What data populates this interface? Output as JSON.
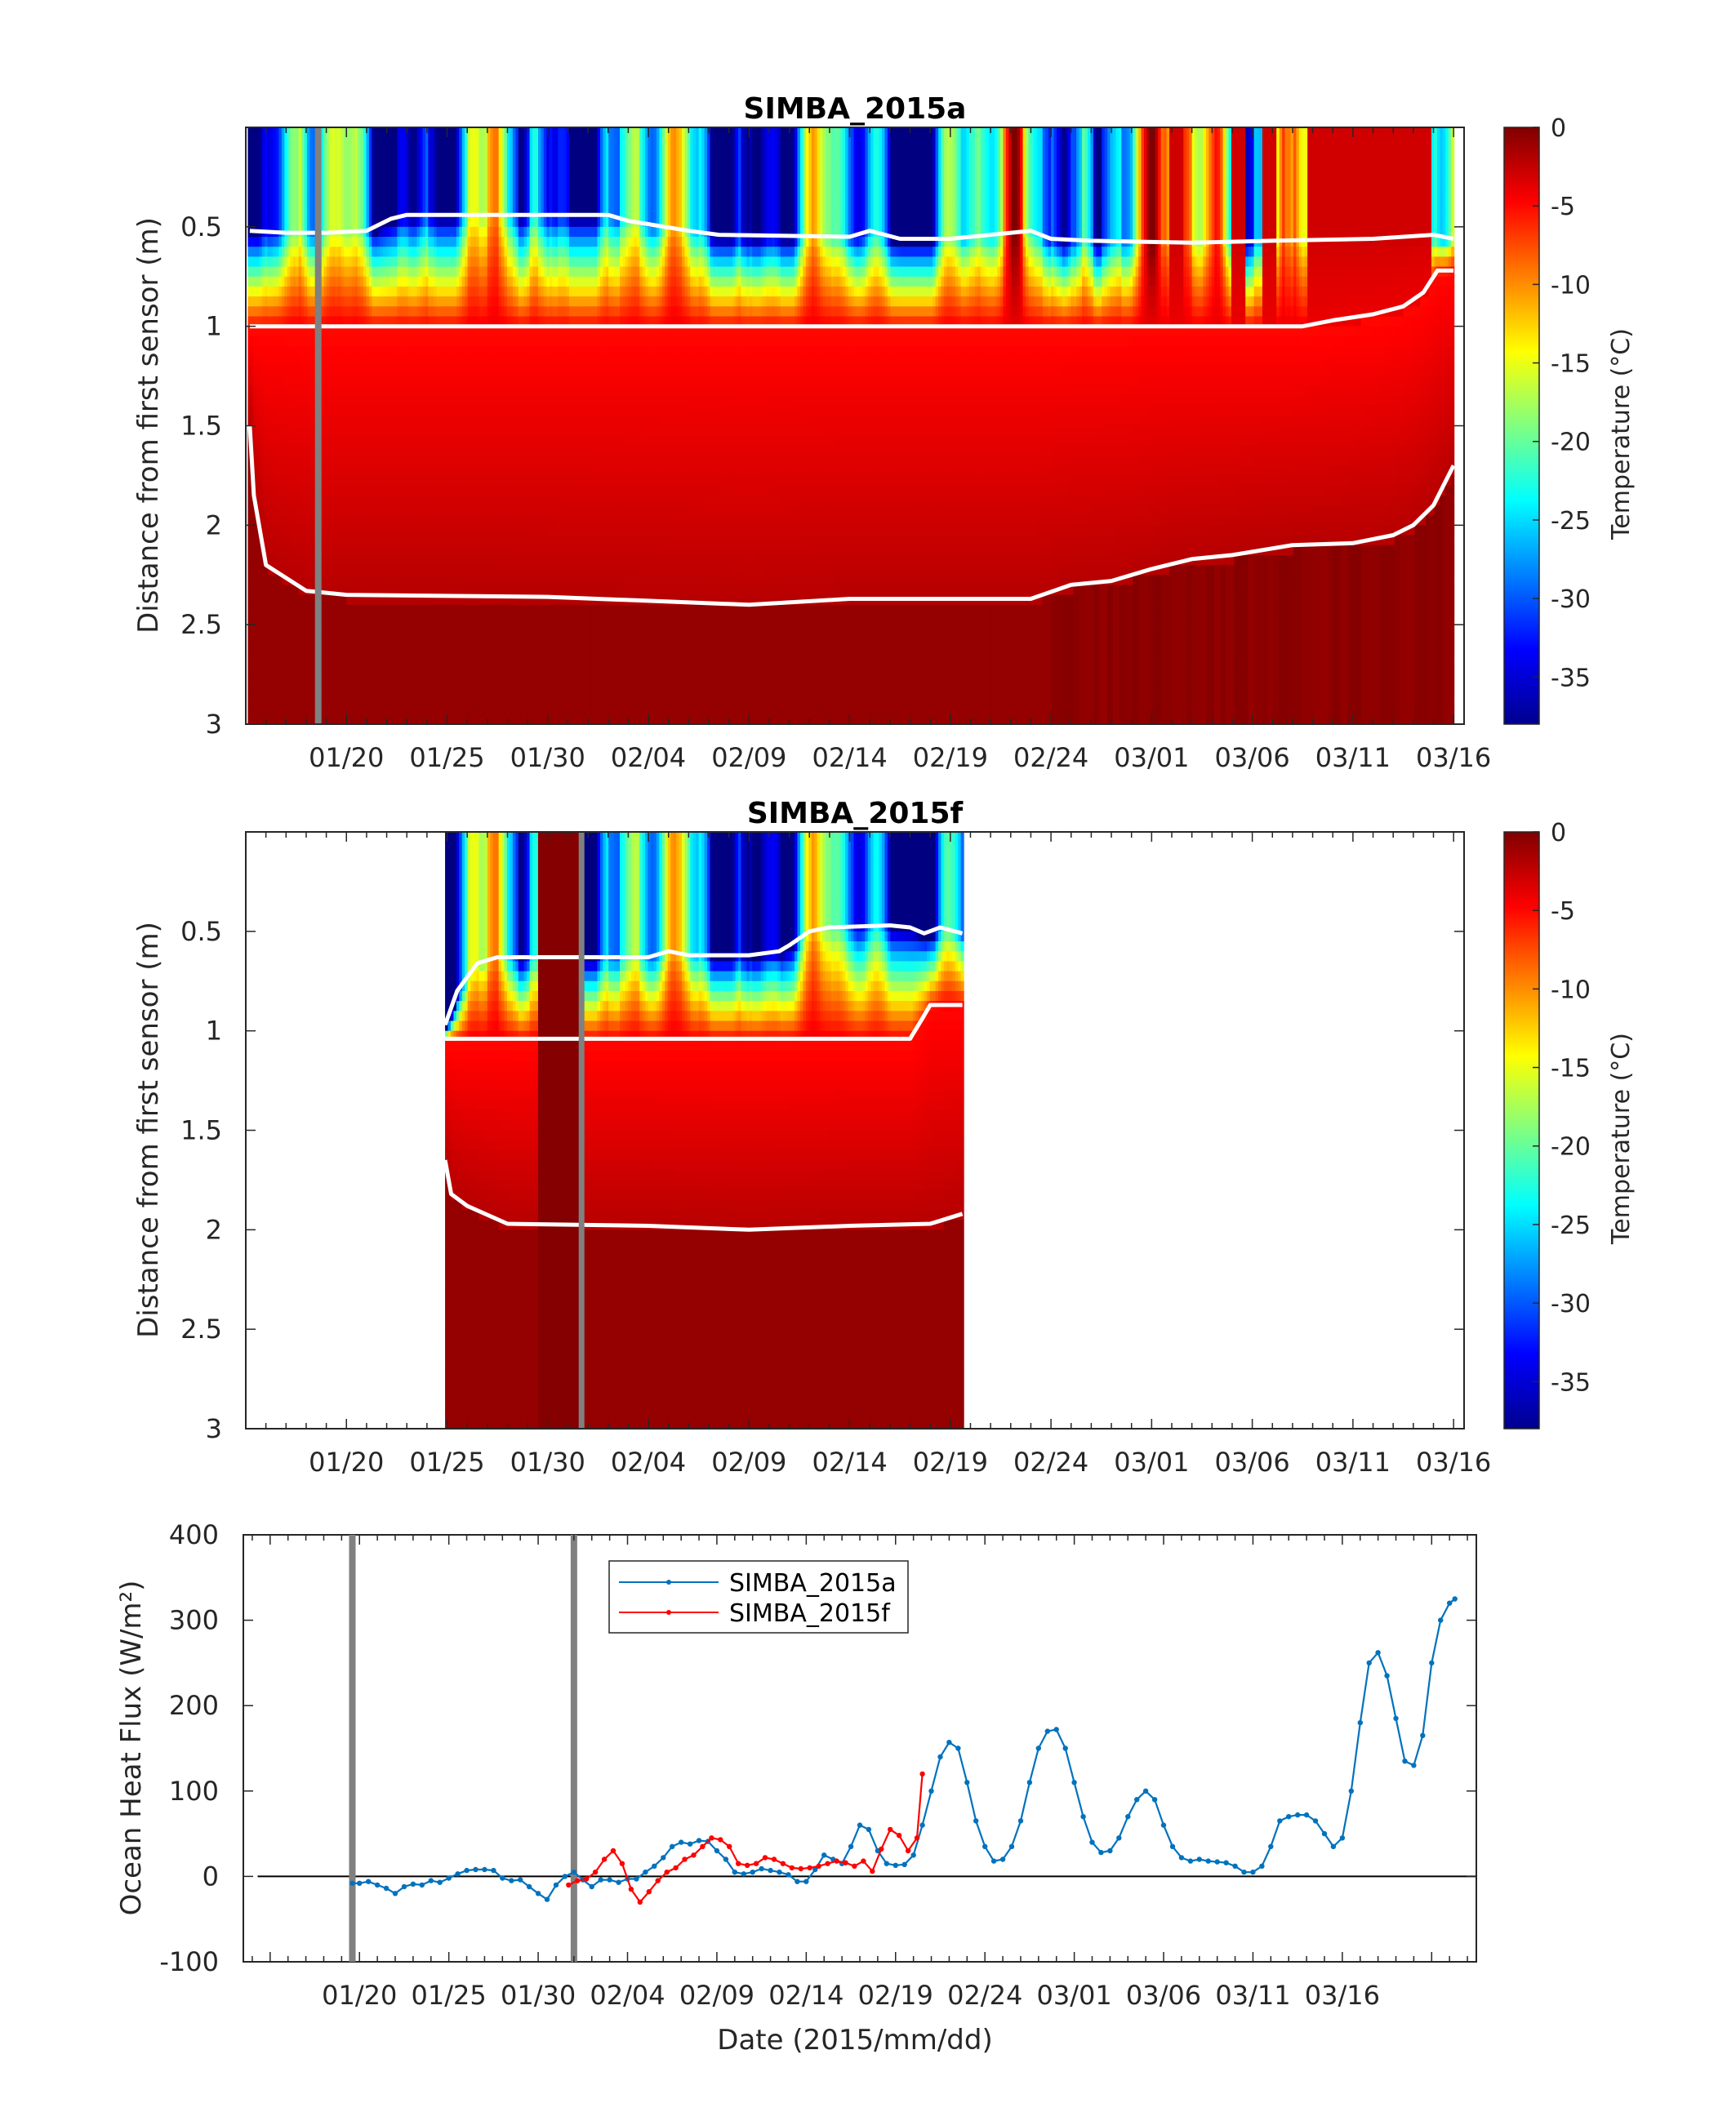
{
  "chart_data": [
    {
      "type": "heatmap",
      "title": "SIMBA_2015a",
      "ylabel": "Distance from first sensor (m)",
      "ylim": [
        3,
        0
      ],
      "yticks": [
        "0.5",
        "1",
        "1.5",
        "2",
        "2.5",
        "3"
      ],
      "xtick_labels": [
        "01/20",
        "01/25",
        "01/30",
        "02/04",
        "02/09",
        "02/14",
        "02/19",
        "02/24",
        "03/01",
        "03/06",
        "03/11",
        "03/16"
      ],
      "colorbar": {
        "label": "Temperature (°C)",
        "range": [
          -38,
          0
        ],
        "ticks": [
          "0",
          "-5",
          "-10",
          "-15",
          "-20",
          "-25",
          "-30",
          "-35"
        ]
      },
      "data_start_day": 15.1,
      "data_end_day": 75.0,
      "marker_day": 18.6,
      "snow_surface": [
        [
          15.2,
          0.52
        ],
        [
          17,
          0.53
        ],
        [
          19,
          0.53
        ],
        [
          21,
          0.52
        ],
        [
          22.2,
          0.46
        ],
        [
          23,
          0.44
        ],
        [
          33,
          0.44
        ],
        [
          34,
          0.47
        ],
        [
          37,
          0.52
        ],
        [
          38.5,
          0.54
        ],
        [
          45,
          0.55
        ],
        [
          46,
          0.52
        ],
        [
          47.5,
          0.56
        ],
        [
          50,
          0.56
        ],
        [
          52,
          0.54
        ],
        [
          54,
          0.52
        ],
        [
          55,
          0.56
        ],
        [
          57,
          0.57
        ],
        [
          62,
          0.58
        ],
        [
          66,
          0.57
        ],
        [
          71,
          0.56
        ],
        [
          74,
          0.54
        ],
        [
          75,
          0.56
        ]
      ],
      "ice_surface": [
        [
          15.2,
          1.0
        ],
        [
          67.5,
          1.0
        ],
        [
          69,
          0.97
        ],
        [
          71,
          0.94
        ],
        [
          72.5,
          0.9
        ],
        [
          73.5,
          0.83
        ],
        [
          74.2,
          0.72
        ],
        [
          75,
          0.72
        ]
      ],
      "ice_bottom": [
        [
          15.2,
          1.5
        ],
        [
          15.4,
          1.85
        ],
        [
          16,
          2.2
        ],
        [
          18,
          2.33
        ],
        [
          20,
          2.35
        ],
        [
          30,
          2.36
        ],
        [
          35,
          2.38
        ],
        [
          40,
          2.4
        ],
        [
          45,
          2.37
        ],
        [
          50,
          2.37
        ],
        [
          54,
          2.37
        ],
        [
          56,
          2.3
        ],
        [
          58,
          2.28
        ],
        [
          60,
          2.22
        ],
        [
          62,
          2.17
        ],
        [
          64,
          2.15
        ],
        [
          67,
          2.1
        ],
        [
          70,
          2.09
        ],
        [
          72,
          2.05
        ],
        [
          73,
          2.0
        ],
        [
          74,
          1.9
        ],
        [
          75,
          1.7
        ]
      ]
    },
    {
      "type": "heatmap",
      "title": "SIMBA_2015f",
      "ylabel": "Distance from first sensor (m)",
      "ylim": [
        3,
        0
      ],
      "yticks": [
        "0.5",
        "1",
        "1.5",
        "2",
        "2.5",
        "3"
      ],
      "xtick_labels": [
        "01/20",
        "01/25",
        "01/30",
        "02/04",
        "02/09",
        "02/14",
        "02/19",
        "02/24",
        "03/01",
        "03/06",
        "03/11",
        "03/16"
      ],
      "colorbar": {
        "label": "Temperature (°C)",
        "range": [
          -38,
          0
        ],
        "ticks": [
          "0",
          "-5",
          "-10",
          "-15",
          "-20",
          "-25",
          "-30",
          "-35"
        ]
      },
      "data_start_day": 24.9,
      "data_end_day": 50.6,
      "dark_band_days": [
        29.4,
        31.7
      ],
      "marker_day": 31.7,
      "snow_surface": [
        [
          24.9,
          0.97
        ],
        [
          25.5,
          0.8
        ],
        [
          26.5,
          0.66
        ],
        [
          27.5,
          0.63
        ],
        [
          35,
          0.63
        ],
        [
          36,
          0.6
        ],
        [
          37,
          0.62
        ],
        [
          40,
          0.62
        ],
        [
          41.5,
          0.6
        ],
        [
          42,
          0.57
        ],
        [
          43,
          0.5
        ],
        [
          44,
          0.48
        ],
        [
          47,
          0.47
        ],
        [
          48,
          0.48
        ],
        [
          48.7,
          0.51
        ],
        [
          49.5,
          0.48
        ],
        [
          50.6,
          0.51
        ]
      ],
      "ice_surface": [
        [
          24.9,
          1.04
        ],
        [
          48,
          1.04
        ],
        [
          48.6,
          0.94
        ],
        [
          49,
          0.87
        ],
        [
          50.6,
          0.87
        ]
      ],
      "ice_bottom": [
        [
          24.9,
          1.65
        ],
        [
          25.2,
          1.82
        ],
        [
          26,
          1.88
        ],
        [
          28,
          1.97
        ],
        [
          35,
          1.98
        ],
        [
          40,
          2.0
        ],
        [
          45,
          1.98
        ],
        [
          49,
          1.97
        ],
        [
          50.6,
          1.92
        ]
      ]
    },
    {
      "type": "line",
      "xlabel": "Date (2015/mm/dd)",
      "ylabel": "Ocean Heat Flux (W/m²)",
      "ylim": [
        -100,
        400
      ],
      "yticks": [
        "-100",
        "0",
        "100",
        "200",
        "300",
        "400"
      ],
      "xtick_labels": [
        "01/20",
        "01/25",
        "01/30",
        "02/04",
        "02/09",
        "02/14",
        "02/19",
        "02/24",
        "03/01",
        "03/06",
        "03/11",
        "03/16"
      ],
      "marker_days": [
        19.6,
        32.0
      ],
      "series": [
        {
          "name": "SIMBA_2015a",
          "color": "#0072bd",
          "points": [
            [
              19.6,
              -8
            ],
            [
              20,
              -8
            ],
            [
              20.5,
              -6
            ],
            [
              21,
              -10
            ],
            [
              21.5,
              -14
            ],
            [
              22,
              -20
            ],
            [
              22.5,
              -12
            ],
            [
              23,
              -9
            ],
            [
              23.5,
              -10
            ],
            [
              24,
              -5
            ],
            [
              24.5,
              -7
            ],
            [
              25,
              -2
            ],
            [
              25.5,
              3
            ],
            [
              26,
              7
            ],
            [
              26.5,
              8
            ],
            [
              27,
              8
            ],
            [
              27.5,
              7
            ],
            [
              28,
              -2
            ],
            [
              28.5,
              -5
            ],
            [
              29,
              -4
            ],
            [
              29.5,
              -12
            ],
            [
              30,
              -20
            ],
            [
              30.5,
              -27
            ],
            [
              31,
              -10
            ],
            [
              31.5,
              0
            ],
            [
              32,
              5
            ],
            [
              32.5,
              -4
            ],
            [
              33,
              -12
            ],
            [
              33.5,
              -4
            ],
            [
              34,
              -4
            ],
            [
              34.5,
              -7
            ],
            [
              35,
              -3
            ],
            [
              35.5,
              -3
            ],
            [
              36,
              5
            ],
            [
              36.5,
              12
            ],
            [
              37,
              22
            ],
            [
              37.5,
              35
            ],
            [
              38,
              40
            ],
            [
              38.5,
              38
            ],
            [
              39,
              42
            ],
            [
              39.5,
              41
            ],
            [
              40,
              30
            ],
            [
              40.5,
              20
            ],
            [
              41,
              5
            ],
            [
              41.5,
              3
            ],
            [
              42,
              5
            ],
            [
              42.5,
              9
            ],
            [
              43,
              7
            ],
            [
              43.5,
              5
            ],
            [
              44,
              2
            ],
            [
              44.5,
              -6
            ],
            [
              45,
              -6
            ],
            [
              45.5,
              8
            ],
            [
              46,
              25
            ],
            [
              46.5,
              20
            ],
            [
              47,
              15
            ],
            [
              47.5,
              35
            ],
            [
              48,
              60
            ],
            [
              48.5,
              55
            ],
            [
              49,
              30
            ],
            [
              49.5,
              15
            ],
            [
              50,
              13
            ],
            [
              50.5,
              14
            ],
            [
              51,
              25
            ],
            [
              51.5,
              60
            ],
            [
              52,
              100
            ],
            [
              52.5,
              140
            ],
            [
              53,
              157
            ],
            [
              53.5,
              150
            ],
            [
              54,
              110
            ],
            [
              54.5,
              65
            ],
            [
              55,
              35
            ],
            [
              55.5,
              18
            ],
            [
              56,
              20
            ],
            [
              56.5,
              35
            ],
            [
              57,
              65
            ],
            [
              57.5,
              110
            ],
            [
              58,
              150
            ],
            [
              58.5,
              170
            ],
            [
              59,
              172
            ],
            [
              59.5,
              150
            ],
            [
              60,
              110
            ],
            [
              60.5,
              70
            ],
            [
              61,
              40
            ],
            [
              61.5,
              28
            ],
            [
              62,
              30
            ],
            [
              62.5,
              45
            ],
            [
              63,
              70
            ],
            [
              63.5,
              90
            ],
            [
              64,
              100
            ],
            [
              64.5,
              90
            ],
            [
              65,
              60
            ],
            [
              65.5,
              35
            ],
            [
              66,
              22
            ],
            [
              66.5,
              18
            ],
            [
              67,
              20
            ],
            [
              67.5,
              18
            ],
            [
              68,
              17
            ],
            [
              68.5,
              16
            ],
            [
              69,
              12
            ],
            [
              69.5,
              5
            ],
            [
              70,
              5
            ],
            [
              70.5,
              12
            ],
            [
              71,
              35
            ],
            [
              71.5,
              65
            ],
            [
              72,
              70
            ],
            [
              72.5,
              72
            ],
            [
              73,
              72
            ],
            [
              73.5,
              65
            ],
            [
              74,
              50
            ],
            [
              74.5,
              35
            ],
            [
              75,
              45
            ],
            [
              75.5,
              100
            ],
            [
              76,
              180
            ],
            [
              76.5,
              250
            ],
            [
              77,
              262
            ],
            [
              77.5,
              235
            ],
            [
              78,
              185
            ],
            [
              78.5,
              135
            ],
            [
              79,
              130
            ],
            [
              79.5,
              165
            ],
            [
              80,
              250
            ],
            [
              80.5,
              300
            ],
            [
              81,
              320
            ],
            [
              81.3,
              325
            ]
          ]
        },
        {
          "name": "SIMBA_2015f",
          "color": "#ff0000",
          "points": [
            [
              31.7,
              -10
            ],
            [
              32.2,
              -5
            ],
            [
              32.7,
              -3
            ],
            [
              33.2,
              5
            ],
            [
              33.7,
              20
            ],
            [
              34.2,
              30
            ],
            [
              34.7,
              15
            ],
            [
              35.2,
              -15
            ],
            [
              35.7,
              -30
            ],
            [
              36.2,
              -18
            ],
            [
              36.7,
              -5
            ],
            [
              37.2,
              5
            ],
            [
              37.7,
              10
            ],
            [
              38.2,
              20
            ],
            [
              38.7,
              25
            ],
            [
              39.2,
              35
            ],
            [
              39.7,
              45
            ],
            [
              40.2,
              43
            ],
            [
              40.7,
              35
            ],
            [
              41.2,
              15
            ],
            [
              41.7,
              13
            ],
            [
              42.2,
              15
            ],
            [
              42.7,
              22
            ],
            [
              43.2,
              20
            ],
            [
              43.7,
              15
            ],
            [
              44.2,
              10
            ],
            [
              44.7,
              9
            ],
            [
              45.2,
              10
            ],
            [
              45.7,
              12
            ],
            [
              46.2,
              15
            ],
            [
              46.7,
              18
            ],
            [
              47.2,
              16
            ],
            [
              47.7,
              12
            ],
            [
              48.2,
              18
            ],
            [
              48.7,
              6
            ],
            [
              49.2,
              32
            ],
            [
              49.7,
              55
            ],
            [
              50.2,
              48
            ],
            [
              50.7,
              30
            ],
            [
              51.2,
              45
            ],
            [
              51.5,
              120
            ]
          ]
        }
      ]
    }
  ]
}
